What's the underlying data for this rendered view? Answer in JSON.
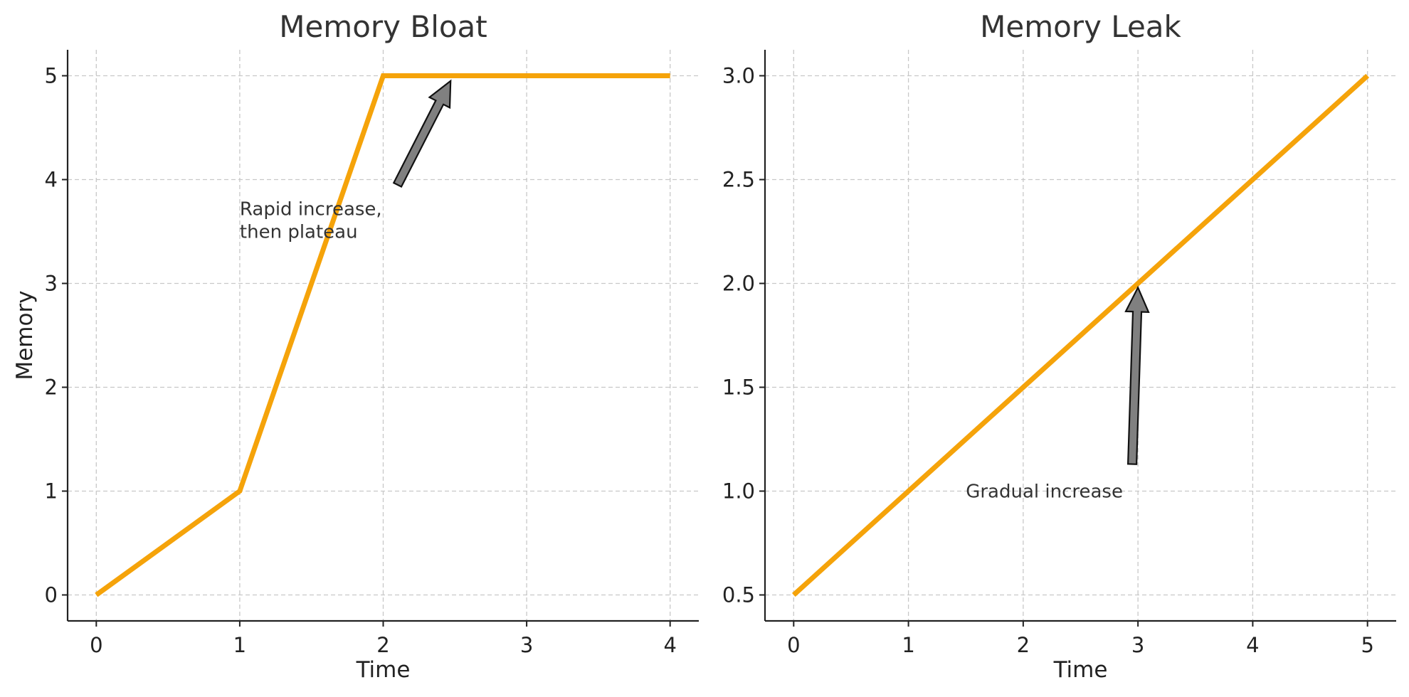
{
  "chart_data": [
    {
      "type": "line",
      "title": "Memory Bloat",
      "xlabel": "Time",
      "ylabel": "Memory",
      "x": [
        0,
        1,
        2,
        3,
        4
      ],
      "series": [
        {
          "values": [
            0,
            1,
            5,
            5,
            5
          ]
        }
      ],
      "xlim": [
        -0.2,
        4.2
      ],
      "ylim": [
        -0.25,
        5.25
      ],
      "xticks": [
        "0",
        "1",
        "2",
        "3",
        "4"
      ],
      "yticks": [
        "0",
        "1",
        "2",
        "3",
        "4",
        "5"
      ],
      "line_color": "#f5a30a",
      "grid": true,
      "annotation": {
        "text_lines": [
          "Rapid increase,",
          "then plateau"
        ],
        "text_at": [
          1.0,
          3.5
        ],
        "arrow_from": [
          2.1,
          3.95
        ],
        "arrow_to": [
          2.47,
          4.95
        ]
      }
    },
    {
      "type": "line",
      "title": "Memory Leak",
      "xlabel": "Time",
      "ylabel": "",
      "x": [
        0,
        1,
        2,
        3,
        4,
        5
      ],
      "series": [
        {
          "values": [
            0.5,
            1.0,
            1.5,
            2.0,
            2.5,
            3.0
          ]
        }
      ],
      "xlim": [
        -0.25,
        5.25
      ],
      "ylim": [
        0.375,
        3.125
      ],
      "xticks": [
        "0",
        "1",
        "2",
        "3",
        "4",
        "5"
      ],
      "yticks": [
        "0.5",
        "1.0",
        "1.5",
        "2.0",
        "2.5",
        "3.0"
      ],
      "line_color": "#f5a30a",
      "grid": true,
      "annotation": {
        "text_lines": [
          "Gradual increase"
        ],
        "text_at": [
          1.5,
          1.0
        ],
        "arrow_from": [
          2.95,
          1.13
        ],
        "arrow_to": [
          3.0,
          1.98
        ]
      }
    }
  ]
}
